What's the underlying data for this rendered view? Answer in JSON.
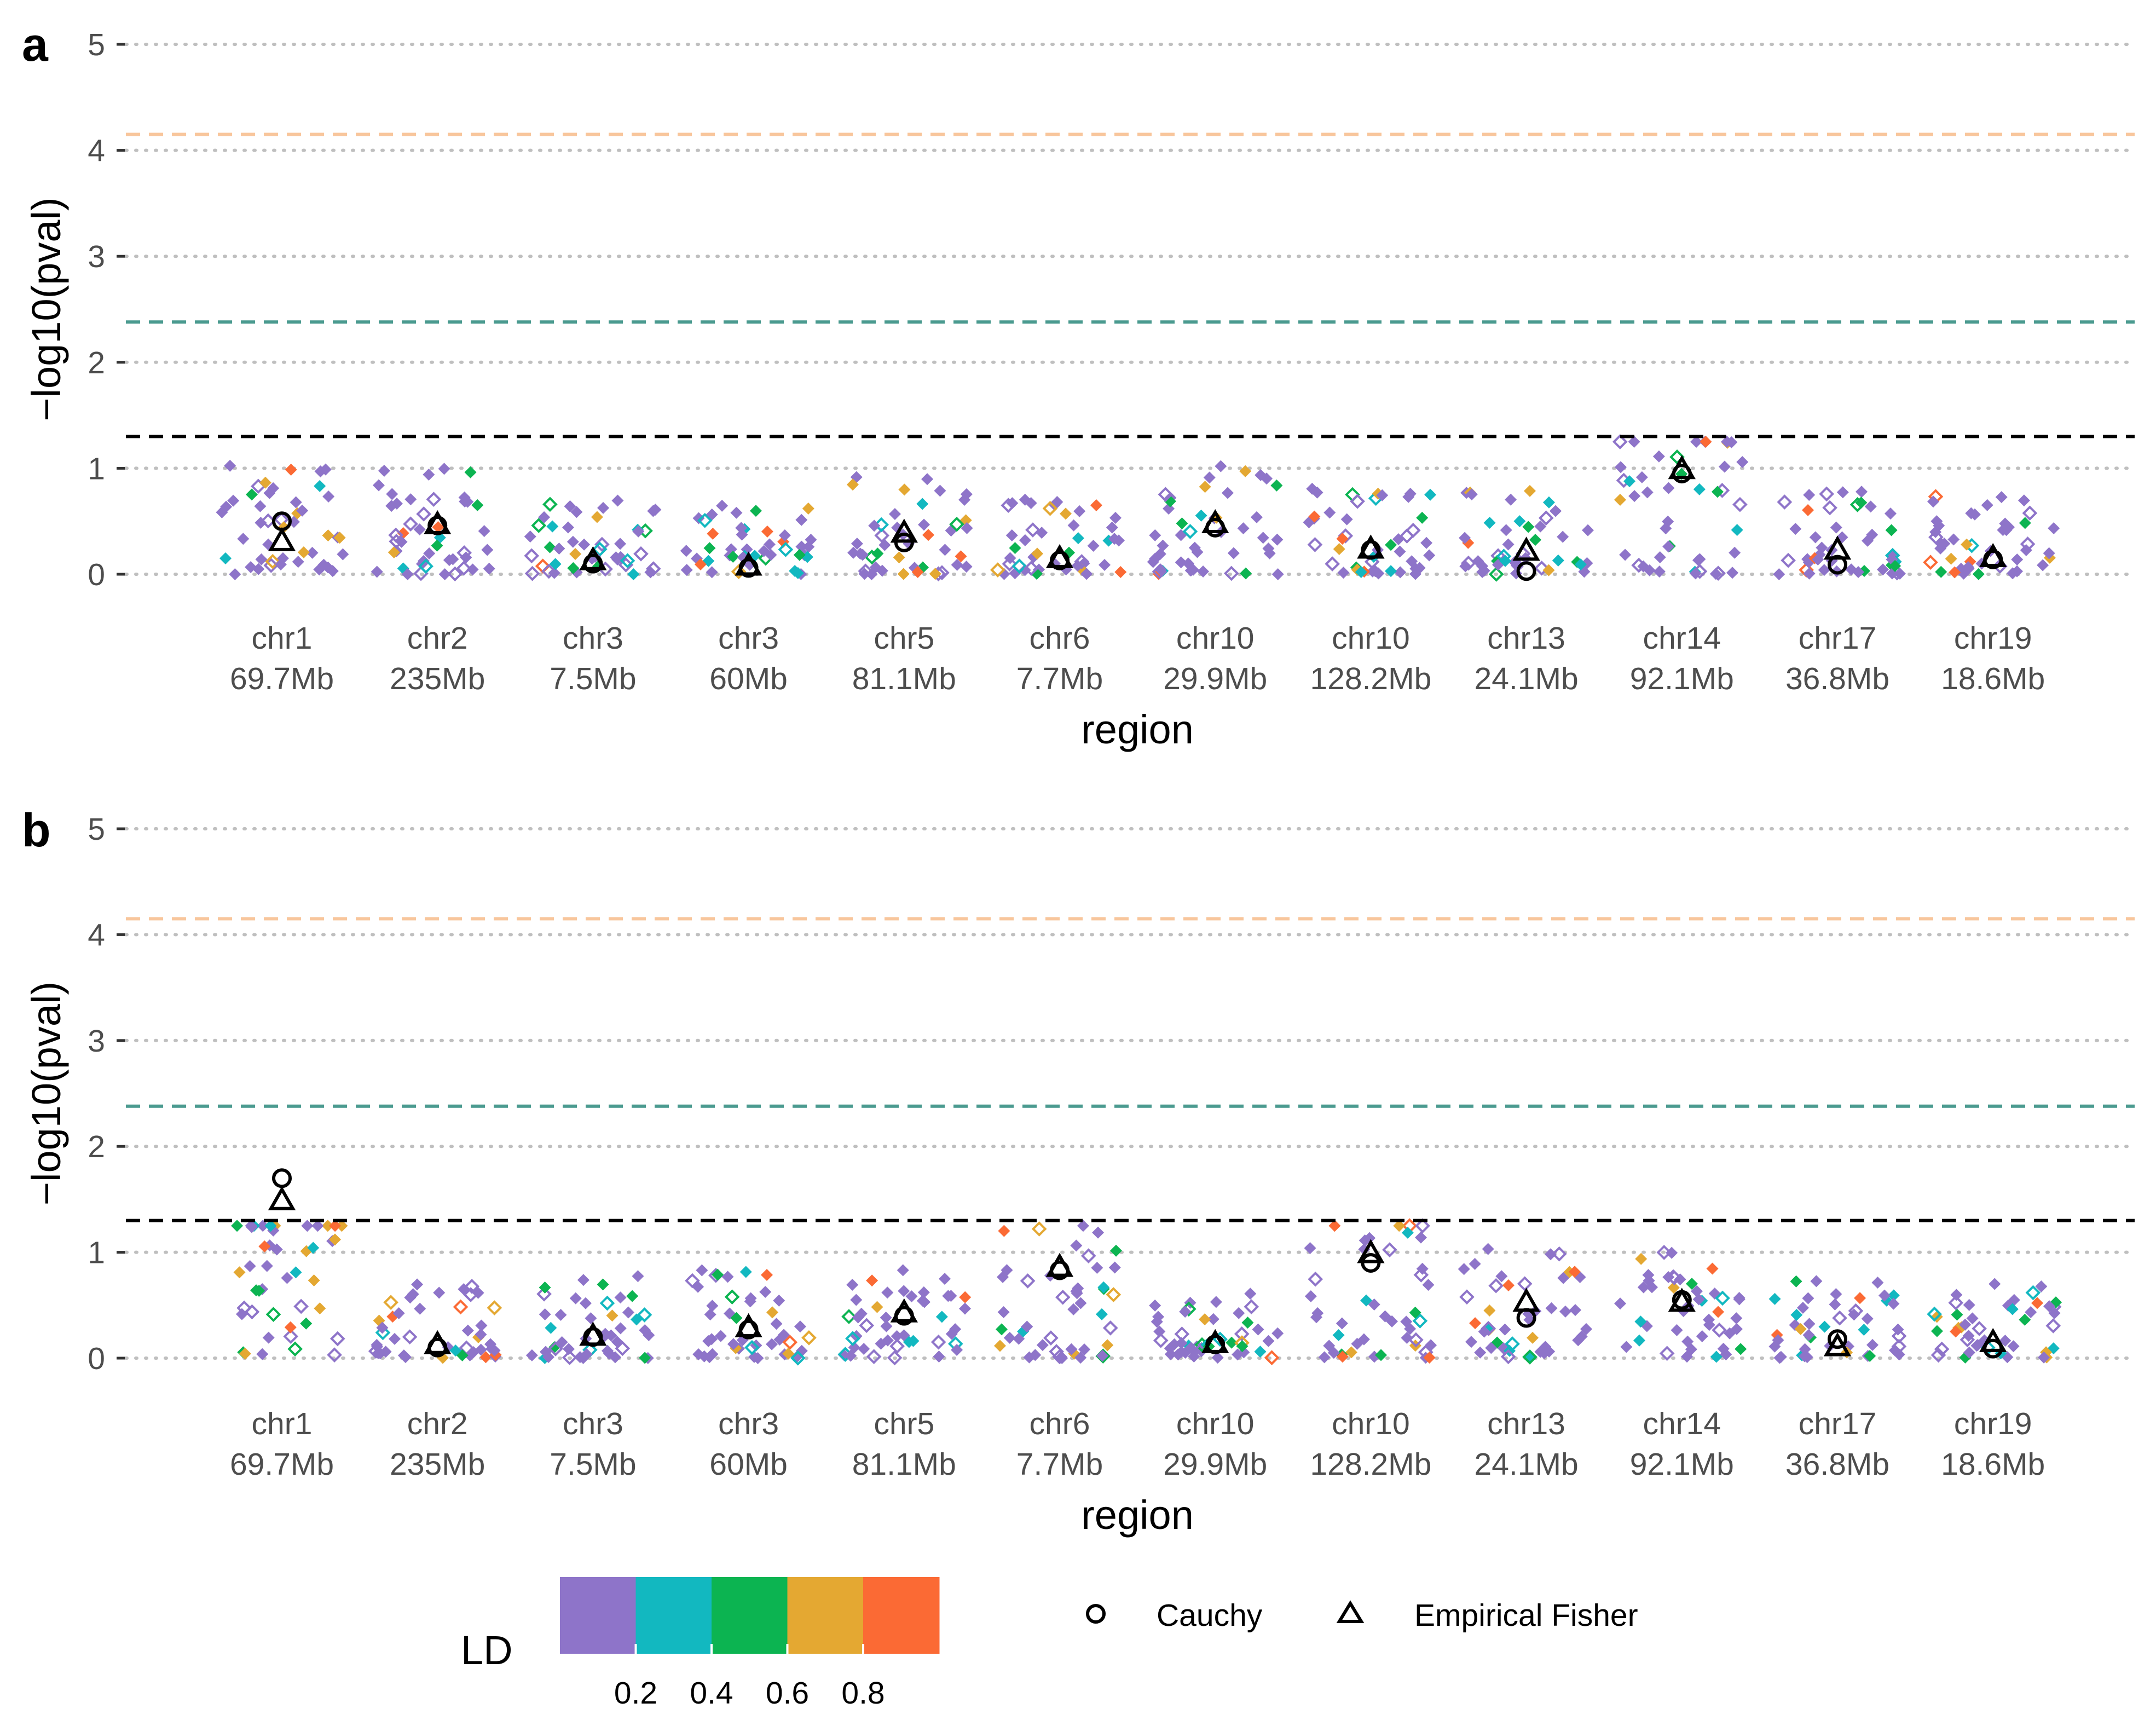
{
  "figure": {
    "legend": {
      "ld_title": "LD",
      "ld_ticks": [
        "0.2",
        "0.4",
        "0.6",
        "0.8"
      ],
      "ld_colors": [
        "#8e74c9",
        "#12b8c0",
        "#0cb451",
        "#e4a832",
        "#fb6a34"
      ],
      "method_cauchy": "Cauchy",
      "method_fisher": "Empirical Fisher"
    },
    "colors": {
      "threshold_black": "#000000",
      "threshold_teal": "#4a9a8f",
      "threshold_peach": "#f8c69c",
      "grid": "#bfbfbf"
    }
  },
  "chart_data": [
    {
      "type": "scatter",
      "panel": "a",
      "xlabel": "region",
      "ylabel": "−log10(pval)",
      "ylim": [
        0,
        5
      ],
      "yticks": [
        "0",
        "1",
        "2",
        "3",
        "4",
        "5"
      ],
      "grid": "dotted horizontal at integer values",
      "thresholds": [
        {
          "value": 1.3,
          "color": "#000000"
        },
        {
          "value": 2.38,
          "color": "#4a9a8f"
        },
        {
          "value": 4.15,
          "color": "#f8c69c"
        }
      ],
      "regions": [
        {
          "chr": "chr1",
          "pos": "69.7Mb",
          "cauchy": 0.5,
          "fisher": 0.3
        },
        {
          "chr": "chr2",
          "pos": "235Mb",
          "cauchy": 0.46,
          "fisher": 0.46
        },
        {
          "chr": "chr3",
          "pos": "7.5Mb",
          "cauchy": 0.1,
          "fisher": 0.12
        },
        {
          "chr": "chr3",
          "pos": "60Mb",
          "cauchy": 0.06,
          "fisher": 0.07
        },
        {
          "chr": "chr5",
          "pos": "81.1Mb",
          "cauchy": 0.3,
          "fisher": 0.38
        },
        {
          "chr": "chr6",
          "pos": "7.7Mb",
          "cauchy": 0.13,
          "fisher": 0.14
        },
        {
          "chr": "chr10",
          "pos": "29.9Mb",
          "cauchy": 0.44,
          "fisher": 0.47
        },
        {
          "chr": "chr10",
          "pos": "128.2Mb",
          "cauchy": 0.23,
          "fisher": 0.23
        },
        {
          "chr": "chr13",
          "pos": "24.1Mb",
          "cauchy": 0.03,
          "fisher": 0.21
        },
        {
          "chr": "chr14",
          "pos": "92.1Mb",
          "cauchy": 0.95,
          "fisher": 0.98
        },
        {
          "chr": "chr17",
          "pos": "36.8Mb",
          "cauchy": 0.09,
          "fisher": 0.22
        },
        {
          "chr": "chr19",
          "pos": "18.6Mb",
          "cauchy": 0.14,
          "fisher": 0.15
        }
      ]
    },
    {
      "type": "scatter",
      "panel": "b",
      "xlabel": "region",
      "ylabel": "−log10(pval)",
      "ylim": [
        0,
        5
      ],
      "yticks": [
        "0",
        "1",
        "2",
        "3",
        "4",
        "5"
      ],
      "grid": "dotted horizontal at integer values",
      "thresholds": [
        {
          "value": 1.3,
          "color": "#000000"
        },
        {
          "value": 2.38,
          "color": "#4a9a8f"
        },
        {
          "value": 4.15,
          "color": "#f8c69c"
        }
      ],
      "regions": [
        {
          "chr": "chr1",
          "pos": "69.7Mb",
          "cauchy": 1.7,
          "fisher": 1.48
        },
        {
          "chr": "chr2",
          "pos": "235Mb",
          "cauchy": 0.1,
          "fisher": 0.12
        },
        {
          "chr": "chr3",
          "pos": "7.5Mb",
          "cauchy": 0.2,
          "fisher": 0.2
        },
        {
          "chr": "chr3",
          "pos": "60Mb",
          "cauchy": 0.27,
          "fisher": 0.28
        },
        {
          "chr": "chr5",
          "pos": "81.1Mb",
          "cauchy": 0.4,
          "fisher": 0.42
        },
        {
          "chr": "chr6",
          "pos": "7.7Mb",
          "cauchy": 0.83,
          "fisher": 0.85
        },
        {
          "chr": "chr10",
          "pos": "29.9Mb",
          "cauchy": 0.13,
          "fisher": 0.13
        },
        {
          "chr": "chr10",
          "pos": "128.2Mb",
          "cauchy": 0.9,
          "fisher": 0.98
        },
        {
          "chr": "chr13",
          "pos": "24.1Mb",
          "cauchy": 0.38,
          "fisher": 0.52
        },
        {
          "chr": "chr14",
          "pos": "92.1Mb",
          "cauchy": 0.55,
          "fisher": 0.52
        },
        {
          "chr": "chr17",
          "pos": "36.8Mb",
          "cauchy": 0.18,
          "fisher": 0.1
        },
        {
          "chr": "chr19",
          "pos": "18.6Mb",
          "cauchy": 0.09,
          "fisher": 0.14
        }
      ]
    }
  ]
}
